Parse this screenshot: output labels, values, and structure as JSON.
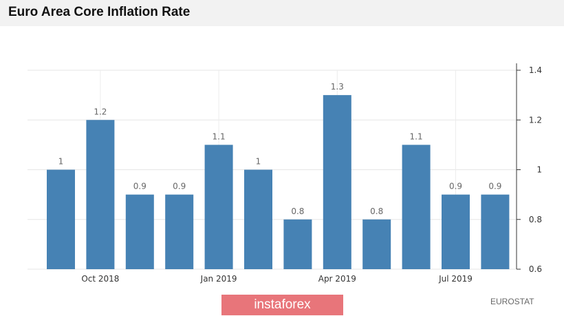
{
  "header": {
    "title": "Euro Area Core Inflation Rate"
  },
  "chart_data": {
    "type": "bar",
    "title": "Euro Area Core Inflation Rate",
    "categories": [
      "Sep 2018",
      "Oct 2018",
      "Nov 2018",
      "Dec 2018",
      "Jan 2019",
      "Feb 2019",
      "Mar 2019",
      "Apr 2019",
      "May 2019",
      "Jun 2019",
      "Jul 2019",
      "Aug 2019"
    ],
    "values": [
      1,
      1.2,
      0.9,
      0.9,
      1.1,
      1,
      0.8,
      1.3,
      0.8,
      1.1,
      0.9,
      0.9
    ],
    "value_labels": [
      "1",
      "1.2",
      "0.9",
      "0.9",
      "1.1",
      "1",
      "0.8",
      "1.3",
      "0.8",
      "1.1",
      "0.9",
      "0.9"
    ],
    "x_tick_labels": [
      {
        "index": 1,
        "label": "Oct 2018"
      },
      {
        "index": 4,
        "label": "Jan 2019"
      },
      {
        "index": 7,
        "label": "Apr 2019"
      },
      {
        "index": 10,
        "label": "Jul 2019"
      }
    ],
    "y_ticks": [
      {
        "value": 0.6,
        "label": "0.6"
      },
      {
        "value": 0.8,
        "label": "0.8"
      },
      {
        "value": 1,
        "label": "1"
      },
      {
        "value": 1.2,
        "label": "1.2"
      },
      {
        "value": 1.4,
        "label": "1.4"
      }
    ],
    "ylim": [
      0.6,
      1.4
    ],
    "y_axis_side": "right",
    "grid": true,
    "bar_color": "#4682b4",
    "xlabel": "",
    "ylabel": ""
  },
  "footer": {
    "watermark": "instaforex",
    "source": "EUROSTAT"
  },
  "colors": {
    "watermark_bg": "#e8757a",
    "grid": "#e6e6e6",
    "bar": "#4682b4"
  }
}
